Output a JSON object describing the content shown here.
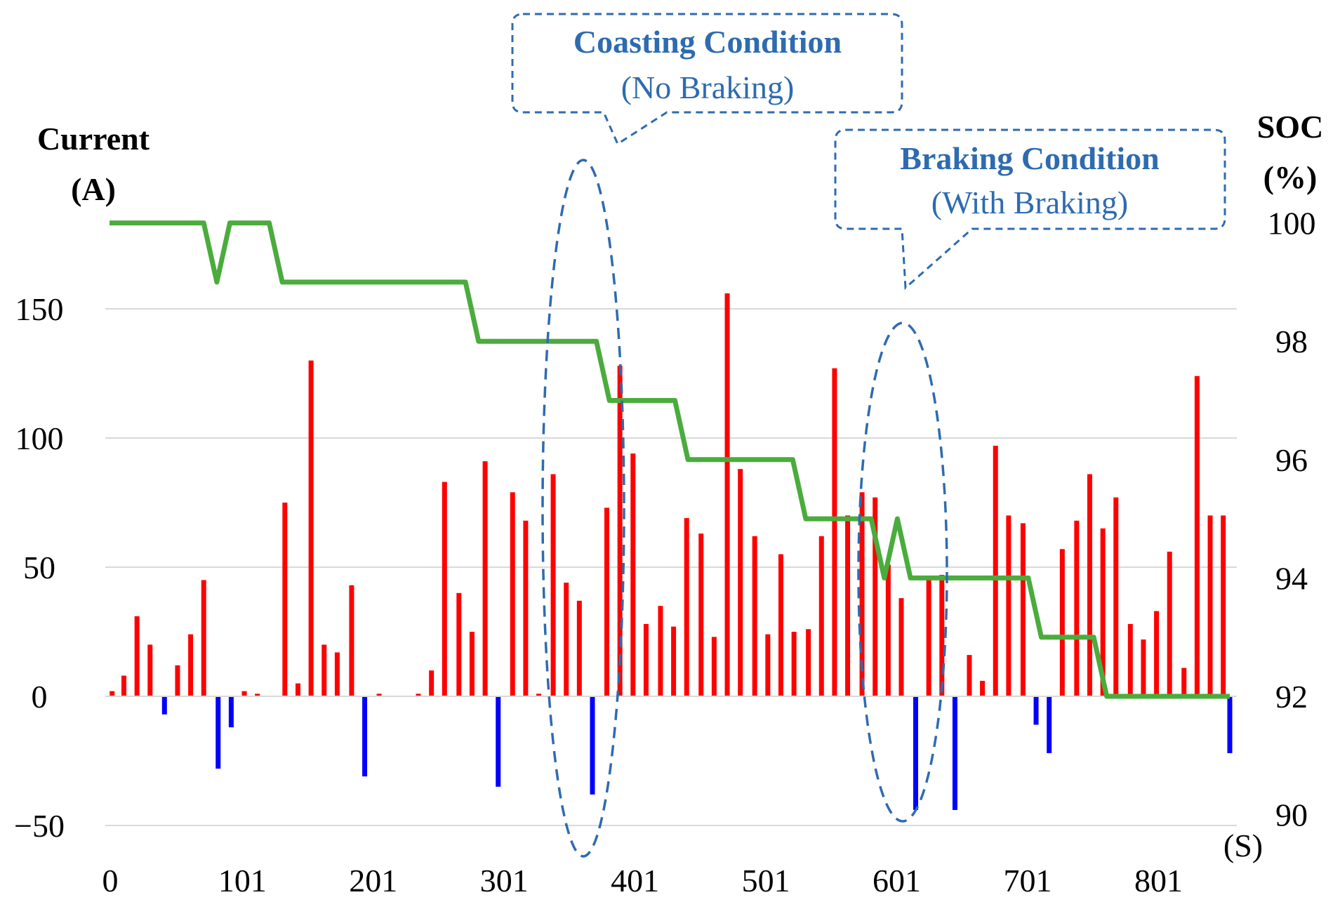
{
  "chart_data": {
    "type": "bar",
    "y_left": {
      "label_line1": "Current",
      "label_line2": "(A)",
      "ylim": [
        -50,
        180
      ],
      "ticks": [
        -50,
        0,
        50,
        100,
        150
      ]
    },
    "y_right": {
      "label_line1": "SOC",
      "label_line2": "(%)",
      "ylim": [
        90,
        100
      ],
      "ticks": [
        90,
        92,
        94,
        96,
        98,
        100
      ]
    },
    "x_axis": {
      "unit_label": "(S)",
      "range": [
        0,
        856
      ],
      "ticks": [
        {
          "x": 0,
          "label": "0"
        },
        {
          "x": 101,
          "label": "101"
        },
        {
          "x": 201,
          "label": "201"
        },
        {
          "x": 301,
          "label": "301"
        },
        {
          "x": 401,
          "label": "401"
        },
        {
          "x": 501,
          "label": "501"
        },
        {
          "x": 601,
          "label": "601"
        },
        {
          "x": 701,
          "label": "701"
        },
        {
          "x": 801,
          "label": "801"
        }
      ]
    },
    "series": [
      {
        "name": "Current (A)",
        "positive_color": "#ff0000",
        "negative_color": "#0000ff",
        "points": [
          [
            2,
            2
          ],
          [
            11,
            8
          ],
          [
            21,
            31
          ],
          [
            31,
            20
          ],
          [
            42,
            -7
          ],
          [
            52,
            12
          ],
          [
            62,
            24
          ],
          [
            72,
            45
          ],
          [
            83,
            -28
          ],
          [
            93,
            -12
          ],
          [
            103,
            2
          ],
          [
            113,
            1
          ],
          [
            134,
            75
          ],
          [
            144,
            5
          ],
          [
            154,
            130
          ],
          [
            164,
            20
          ],
          [
            174,
            17
          ],
          [
            185,
            43
          ],
          [
            195,
            -31
          ],
          [
            206,
            1
          ],
          [
            236,
            1
          ],
          [
            246,
            10
          ],
          [
            256,
            83
          ],
          [
            267,
            40
          ],
          [
            277,
            25
          ],
          [
            287,
            91
          ],
          [
            297,
            -35
          ],
          [
            308,
            79
          ],
          [
            318,
            68
          ],
          [
            328,
            1
          ],
          [
            339,
            86
          ],
          [
            349,
            44
          ],
          [
            359,
            37
          ],
          [
            369,
            -38
          ],
          [
            380,
            73
          ],
          [
            390,
            128
          ],
          [
            400,
            94
          ],
          [
            410,
            28
          ],
          [
            421,
            35
          ],
          [
            431,
            27
          ],
          [
            441,
            69
          ],
          [
            452,
            63
          ],
          [
            462,
            23
          ],
          [
            472,
            156
          ],
          [
            482,
            88
          ],
          [
            493,
            62
          ],
          [
            503,
            24
          ],
          [
            513,
            55
          ],
          [
            523,
            25
          ],
          [
            534,
            26
          ],
          [
            544,
            62
          ],
          [
            554,
            127
          ],
          [
            564,
            70
          ],
          [
            575,
            79
          ],
          [
            585,
            77
          ],
          [
            595,
            51
          ],
          [
            605,
            38
          ],
          [
            616,
            -44
          ],
          [
            626,
            46
          ],
          [
            636,
            47
          ],
          [
            646,
            -44
          ],
          [
            657,
            16
          ],
          [
            667,
            6
          ],
          [
            677,
            97
          ],
          [
            687,
            70
          ],
          [
            698,
            67
          ],
          [
            708,
            -11
          ],
          [
            718,
            -22
          ],
          [
            728,
            57
          ],
          [
            739,
            68
          ],
          [
            749,
            86
          ],
          [
            759,
            65
          ],
          [
            769,
            77
          ],
          [
            780,
            28
          ],
          [
            790,
            22
          ],
          [
            800,
            33
          ],
          [
            810,
            56
          ],
          [
            821,
            11
          ],
          [
            831,
            124
          ],
          [
            841,
            70
          ],
          [
            851,
            70
          ],
          [
            856,
            -22
          ]
        ]
      },
      {
        "name": "SOC (%)",
        "color": "#4aac3c",
        "points": [
          [
            0,
            100
          ],
          [
            72,
            100
          ],
          [
            82,
            99
          ],
          [
            92,
            100
          ],
          [
            122,
            100
          ],
          [
            132,
            99
          ],
          [
            272,
            99
          ],
          [
            282,
            98
          ],
          [
            372,
            98
          ],
          [
            382,
            97
          ],
          [
            432,
            97
          ],
          [
            442,
            96
          ],
          [
            522,
            96
          ],
          [
            532,
            95
          ],
          [
            582,
            95
          ],
          [
            592,
            94
          ],
          [
            602,
            95
          ],
          [
            612,
            94
          ],
          [
            702,
            94
          ],
          [
            712,
            93
          ],
          [
            752,
            93
          ],
          [
            762,
            92
          ],
          [
            856,
            92
          ]
        ]
      }
    ],
    "annotations": [
      {
        "title": "Coasting Condition",
        "subtitle": "(No Braking)"
      },
      {
        "title": "Braking Condition",
        "subtitle": "(With Braking)"
      }
    ]
  }
}
